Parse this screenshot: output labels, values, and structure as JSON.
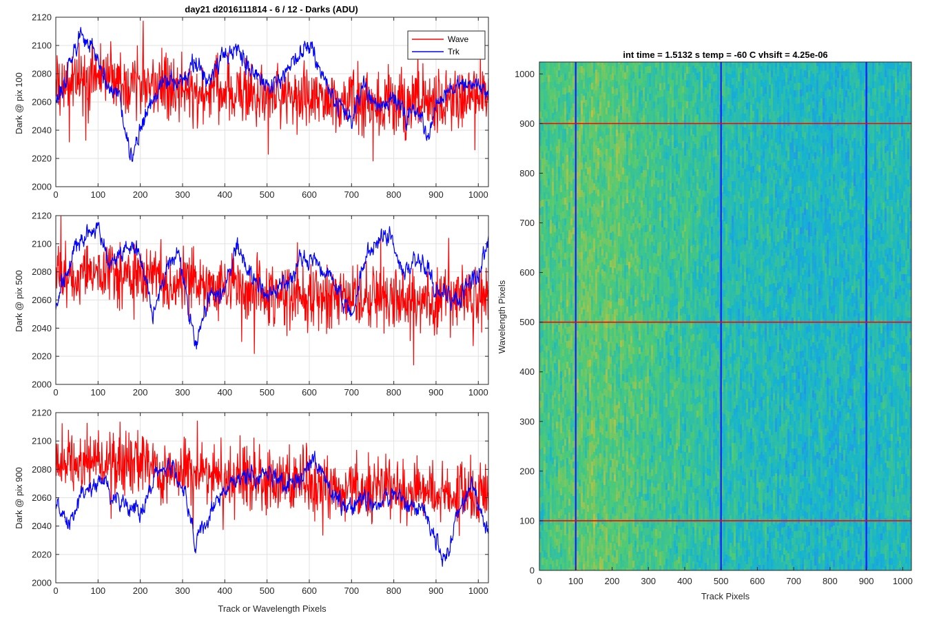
{
  "chart_data": [
    {
      "type": "line",
      "title": "day21 d2016111814 - 6 / 12 - Darks (ADU)",
      "xlabel": "",
      "ylabel": "Dark @ pix 100",
      "xlim": [
        0,
        1024
      ],
      "ylim": [
        2000,
        2120
      ],
      "xticks": [
        "0",
        "100",
        "200",
        "300",
        "400",
        "500",
        "600",
        "700",
        "800",
        "900",
        "1000"
      ],
      "yticks": [
        "2000",
        "2020",
        "2040",
        "2060",
        "2080",
        "2100",
        "2120"
      ],
      "grid": true,
      "legend": {
        "position": "top-right",
        "entries": [
          "Wave",
          "Trk"
        ]
      },
      "series": [
        {
          "name": "Wave",
          "color": "#ff0000",
          "x": [
            0,
            50,
            100,
            150,
            200,
            250,
            300,
            350,
            400,
            450,
            500,
            550,
            600,
            650,
            700,
            750,
            800,
            850,
            900,
            950,
            1000,
            1024
          ],
          "values": [
            2068,
            2078,
            2080,
            2076,
            2074,
            2070,
            2068,
            2066,
            2067,
            2066,
            2065,
            2065,
            2064,
            2062,
            2063,
            2060,
            2058,
            2059,
            2060,
            2062,
            2065,
            2066
          ]
        },
        {
          "name": "Trk",
          "color": "#0000ff",
          "x": [
            0,
            30,
            60,
            90,
            120,
            150,
            180,
            200,
            230,
            260,
            300,
            330,
            360,
            400,
            430,
            460,
            500,
            530,
            570,
            600,
            640,
            660,
            700,
            730,
            760,
            800,
            830,
            860,
            880,
            900,
            930,
            960,
            1000,
            1024
          ],
          "values": [
            2055,
            2085,
            2110,
            2098,
            2075,
            2065,
            2020,
            2040,
            2060,
            2078,
            2072,
            2088,
            2075,
            2092,
            2100,
            2082,
            2070,
            2075,
            2092,
            2102,
            2075,
            2060,
            2048,
            2070,
            2058,
            2062,
            2050,
            2055,
            2030,
            2060,
            2068,
            2072,
            2075,
            2065
          ]
        }
      ]
    },
    {
      "type": "line",
      "title": "",
      "xlabel": "",
      "ylabel": "Dark @ pix 500",
      "xlim": [
        0,
        1024
      ],
      "ylim": [
        2000,
        2120
      ],
      "xticks": [
        "0",
        "100",
        "200",
        "300",
        "400",
        "500",
        "600",
        "700",
        "800",
        "900",
        "1000"
      ],
      "yticks": [
        "2000",
        "2020",
        "2040",
        "2060",
        "2080",
        "2100",
        "2120"
      ],
      "grid": true,
      "series": [
        {
          "name": "Wave",
          "color": "#ff0000",
          "x": [
            0,
            100,
            200,
            300,
            400,
            500,
            600,
            700,
            800,
            900,
            1000,
            1024
          ],
          "values": [
            2075,
            2080,
            2078,
            2072,
            2068,
            2066,
            2064,
            2062,
            2060,
            2060,
            2062,
            2063
          ]
        },
        {
          "name": "Trk",
          "color": "#0000ff",
          "x": [
            0,
            40,
            80,
            100,
            130,
            170,
            200,
            230,
            260,
            290,
            330,
            360,
            400,
            430,
            460,
            500,
            540,
            580,
            620,
            650,
            680,
            700,
            720,
            750,
            790,
            820,
            860,
            900,
            950,
            1000,
            1024
          ],
          "values": [
            2055,
            2095,
            2108,
            2110,
            2085,
            2100,
            2090,
            2050,
            2080,
            2095,
            2025,
            2060,
            2070,
            2098,
            2080,
            2062,
            2070,
            2090,
            2088,
            2075,
            2060,
            2048,
            2075,
            2100,
            2108,
            2080,
            2090,
            2070,
            2060,
            2080,
            2103
          ]
        }
      ]
    },
    {
      "type": "line",
      "title": "",
      "xlabel": "Track or Wavelength Pixels",
      "ylabel": "Dark @ pix 900",
      "xlim": [
        0,
        1024
      ],
      "ylim": [
        2000,
        2120
      ],
      "xticks": [
        "0",
        "100",
        "200",
        "300",
        "400",
        "500",
        "600",
        "700",
        "800",
        "900",
        "1000"
      ],
      "yticks": [
        "2000",
        "2020",
        "2040",
        "2060",
        "2080",
        "2100",
        "2120"
      ],
      "grid": true,
      "series": [
        {
          "name": "Wave",
          "color": "#ff0000",
          "x": [
            0,
            100,
            200,
            300,
            400,
            500,
            600,
            700,
            800,
            900,
            1000,
            1024
          ],
          "values": [
            2085,
            2086,
            2084,
            2078,
            2074,
            2072,
            2070,
            2068,
            2065,
            2063,
            2062,
            2063
          ]
        },
        {
          "name": "Trk",
          "color": "#0000ff",
          "x": [
            0,
            30,
            60,
            100,
            130,
            170,
            200,
            240,
            270,
            300,
            330,
            370,
            400,
            430,
            460,
            500,
            540,
            580,
            610,
            650,
            690,
            720,
            760,
            800,
            840,
            870,
            920,
            950,
            980,
            1000,
            1024
          ],
          "values": [
            2055,
            2040,
            2062,
            2072,
            2062,
            2055,
            2050,
            2078,
            2082,
            2068,
            2030,
            2052,
            2066,
            2072,
            2074,
            2078,
            2070,
            2072,
            2090,
            2066,
            2050,
            2058,
            2055,
            2065,
            2052,
            2055,
            2015,
            2045,
            2068,
            2055,
            2035
          ]
        }
      ]
    },
    {
      "type": "heatmap",
      "title": "int time = 1.5132 s    temp = -60 C    vhsift = 4.25e-06",
      "xlabel": "Track Pixels",
      "ylabel": "Wavelength Pixels",
      "xlim": [
        0,
        1024
      ],
      "ylim": [
        0,
        1024
      ],
      "xticks": [
        "0",
        "100",
        "200",
        "300",
        "400",
        "500",
        "600",
        "700",
        "800",
        "900",
        "1000"
      ],
      "yticks": [
        "0",
        "100",
        "200",
        "300",
        "400",
        "500",
        "600",
        "700",
        "800",
        "900",
        "1000"
      ],
      "colormap": [
        "#3e26a8",
        "#2e7efb",
        "#15b4d0",
        "#4bca78",
        "#c8c13c",
        "#f5e41d"
      ],
      "value_trend": {
        "x": [
          0,
          100,
          200,
          300,
          400,
          500,
          600,
          700,
          800,
          900,
          1024
        ],
        "level": [
          0.55,
          0.62,
          0.62,
          0.56,
          0.52,
          0.48,
          0.46,
          0.44,
          0.42,
          0.44,
          0.46
        ]
      },
      "vlines": {
        "color": "#1a1aff",
        "x": [
          100,
          500,
          900
        ]
      },
      "hlines": {
        "color": "#ff0000",
        "y": [
          100,
          500,
          900
        ]
      }
    }
  ]
}
